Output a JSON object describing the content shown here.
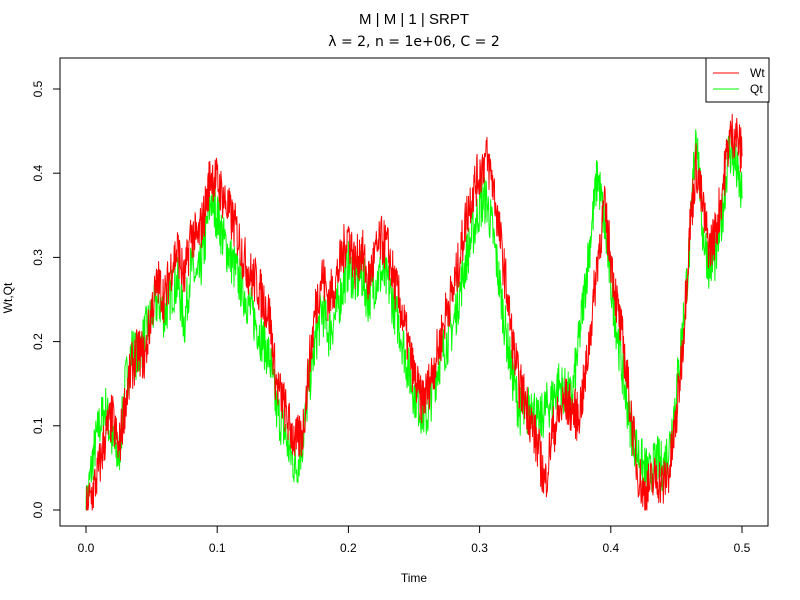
{
  "chart_data": {
    "type": "line",
    "title": "M | M | 1 | SRPT",
    "subtitle": "λ = 2, n = 1e+06, C = 2",
    "xlabel": "Time",
    "ylabel": "Wt,Qt",
    "xlim": [
      0.0,
      0.5
    ],
    "ylim": [
      0.0,
      0.5
    ],
    "xticks": [
      "0.0",
      "0.1",
      "0.2",
      "0.3",
      "0.4",
      "0.5"
    ],
    "yticks": [
      "0.0",
      "0.1",
      "0.2",
      "0.3",
      "0.4",
      "0.5"
    ],
    "grid": false,
    "legend_position": "top-right",
    "x": [
      0.0,
      0.005,
      0.01,
      0.015,
      0.02,
      0.025,
      0.03,
      0.035,
      0.04,
      0.045,
      0.05,
      0.055,
      0.06,
      0.065,
      0.07,
      0.075,
      0.08,
      0.085,
      0.09,
      0.095,
      0.1,
      0.105,
      0.11,
      0.115,
      0.12,
      0.125,
      0.13,
      0.135,
      0.14,
      0.145,
      0.15,
      0.155,
      0.16,
      0.165,
      0.17,
      0.175,
      0.18,
      0.185,
      0.19,
      0.195,
      0.2,
      0.205,
      0.21,
      0.215,
      0.22,
      0.225,
      0.23,
      0.235,
      0.24,
      0.245,
      0.25,
      0.255,
      0.26,
      0.265,
      0.27,
      0.275,
      0.28,
      0.285,
      0.29,
      0.295,
      0.3,
      0.305,
      0.31,
      0.315,
      0.32,
      0.325,
      0.33,
      0.335,
      0.34,
      0.345,
      0.35,
      0.355,
      0.36,
      0.365,
      0.37,
      0.375,
      0.38,
      0.385,
      0.39,
      0.395,
      0.4,
      0.405,
      0.41,
      0.415,
      0.42,
      0.425,
      0.43,
      0.435,
      0.44,
      0.445,
      0.45,
      0.455,
      0.46,
      0.465,
      0.47,
      0.475,
      0.48,
      0.485,
      0.49,
      0.495,
      0.5
    ],
    "series": [
      {
        "name": "Wt",
        "color": "#ff0000",
        "values": [
          0.0,
          0.02,
          0.05,
          0.09,
          0.11,
          0.07,
          0.13,
          0.17,
          0.19,
          0.18,
          0.24,
          0.27,
          0.25,
          0.29,
          0.31,
          0.27,
          0.33,
          0.32,
          0.35,
          0.4,
          0.39,
          0.37,
          0.35,
          0.33,
          0.3,
          0.28,
          0.27,
          0.25,
          0.23,
          0.15,
          0.13,
          0.1,
          0.08,
          0.09,
          0.17,
          0.24,
          0.28,
          0.25,
          0.27,
          0.3,
          0.33,
          0.29,
          0.31,
          0.27,
          0.3,
          0.32,
          0.31,
          0.27,
          0.24,
          0.2,
          0.16,
          0.13,
          0.14,
          0.17,
          0.2,
          0.24,
          0.26,
          0.3,
          0.35,
          0.38,
          0.4,
          0.42,
          0.39,
          0.33,
          0.27,
          0.2,
          0.15,
          0.13,
          0.1,
          0.07,
          0.03,
          0.09,
          0.11,
          0.13,
          0.12,
          0.11,
          0.15,
          0.22,
          0.3,
          0.36,
          0.3,
          0.24,
          0.19,
          0.12,
          0.05,
          0.02,
          0.03,
          0.04,
          0.03,
          0.05,
          0.11,
          0.2,
          0.33,
          0.41,
          0.36,
          0.31,
          0.33,
          0.38,
          0.44,
          0.45,
          0.42
        ]
      },
      {
        "name": "Qt",
        "color": "#00ff00",
        "values": [
          0.0,
          0.06,
          0.1,
          0.12,
          0.08,
          0.06,
          0.15,
          0.19,
          0.18,
          0.21,
          0.23,
          0.25,
          0.23,
          0.26,
          0.27,
          0.22,
          0.29,
          0.27,
          0.31,
          0.37,
          0.35,
          0.32,
          0.3,
          0.28,
          0.26,
          0.24,
          0.22,
          0.2,
          0.18,
          0.12,
          0.1,
          0.07,
          0.05,
          0.08,
          0.15,
          0.2,
          0.24,
          0.21,
          0.23,
          0.26,
          0.29,
          0.27,
          0.28,
          0.25,
          0.27,
          0.28,
          0.27,
          0.24,
          0.21,
          0.17,
          0.14,
          0.12,
          0.11,
          0.15,
          0.18,
          0.2,
          0.22,
          0.26,
          0.3,
          0.33,
          0.36,
          0.37,
          0.33,
          0.27,
          0.21,
          0.16,
          0.12,
          0.11,
          0.13,
          0.1,
          0.12,
          0.13,
          0.15,
          0.14,
          0.13,
          0.19,
          0.26,
          0.33,
          0.4,
          0.34,
          0.27,
          0.21,
          0.15,
          0.1,
          0.07,
          0.05,
          0.04,
          0.06,
          0.05,
          0.08,
          0.14,
          0.22,
          0.31,
          0.46,
          0.33,
          0.29,
          0.3,
          0.35,
          0.43,
          0.41,
          0.37
        ]
      }
    ]
  }
}
